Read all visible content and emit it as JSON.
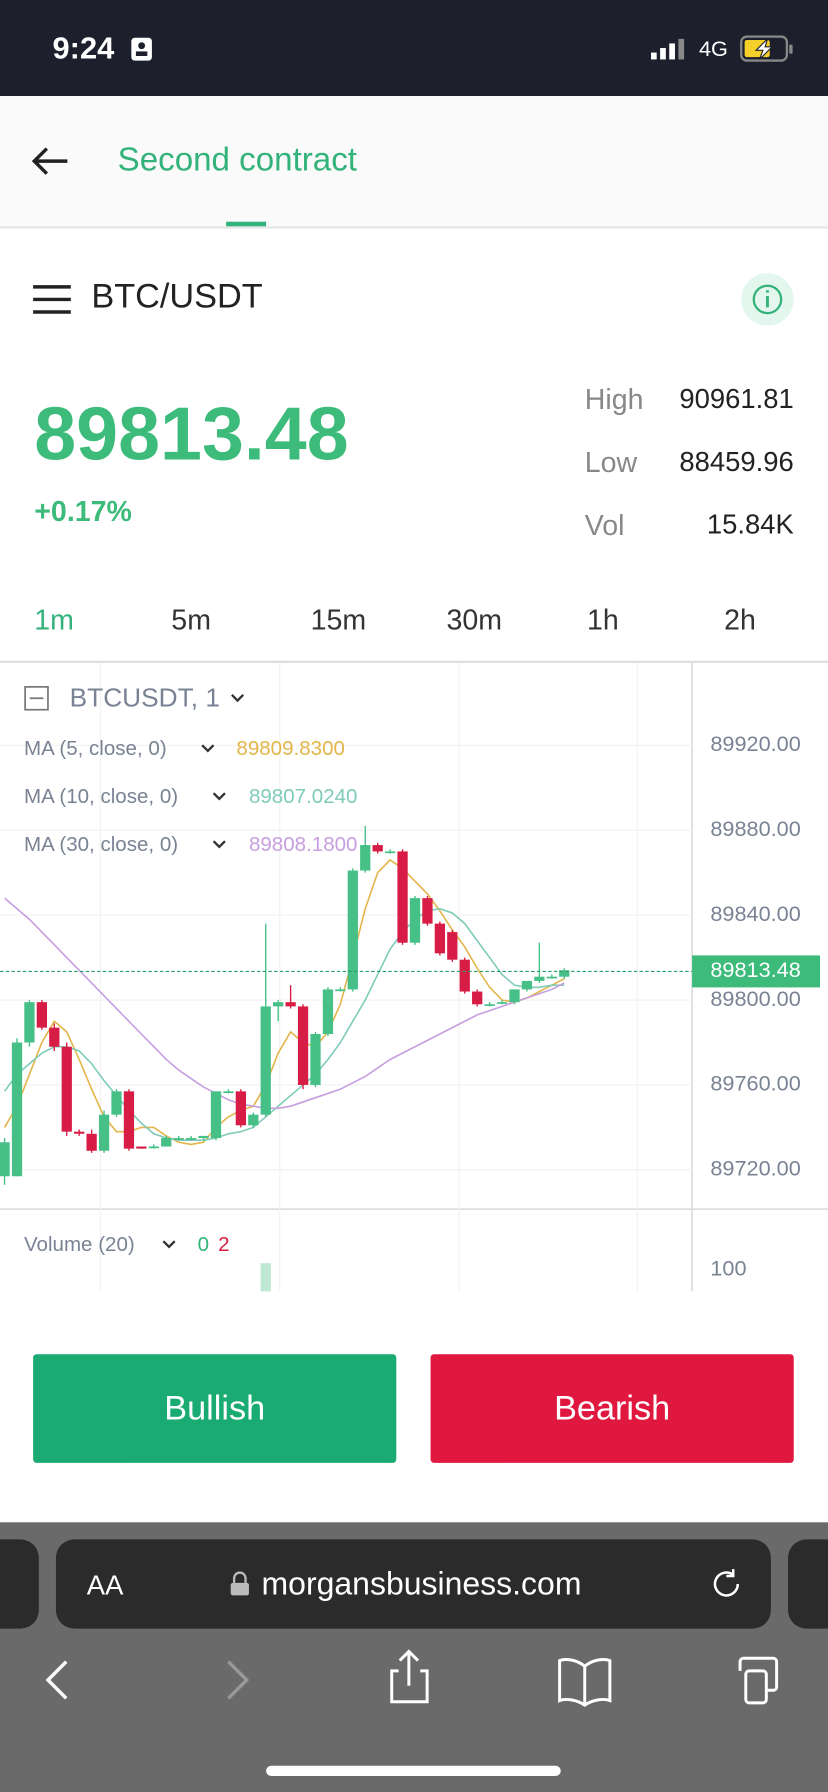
{
  "status_bar": {
    "time": "9:24",
    "network": "4G"
  },
  "header": {
    "title": "Second contract"
  },
  "ticker": {
    "pair": "BTC/USDT",
    "price": "89813.48",
    "change": "+0.17%",
    "stats": [
      {
        "label": "High",
        "value": "90961.81"
      },
      {
        "label": "Low",
        "value": "88459.96"
      },
      {
        "label": "Vol",
        "value": "15.84K"
      }
    ]
  },
  "timeframes": [
    "1m",
    "5m",
    "15m",
    "30m",
    "1h",
    "2h"
  ],
  "chart_data": {
    "type": "candlestick",
    "title": "BTCUSDT, 1",
    "up_color": "#47c088",
    "down_color": "#d71d45",
    "open": [
      89717,
      89717,
      89780,
      89799,
      89787,
      89778,
      89738,
      89737,
      89729,
      89746,
      89757,
      89731,
      89731,
      89731,
      89735,
      89735,
      89735,
      89735,
      89757,
      89757,
      89741,
      89746,
      89797,
      89799,
      89797,
      89760,
      89784,
      89805,
      89805,
      89861,
      89873,
      89870,
      89870,
      89827,
      89848,
      89836,
      89832,
      89819,
      89804,
      89798,
      89799,
      89799,
      89805,
      89809,
      89811,
      89811
    ],
    "high": [
      89735,
      89782,
      89800,
      89800,
      89789,
      89780,
      89739,
      89739,
      89748,
      89758,
      89758,
      89731,
      89732,
      89736,
      89736,
      89736,
      89736,
      89757,
      89758,
      89758,
      89747,
      89836,
      89800,
      89807,
      89798,
      89785,
      89806,
      89806,
      89862,
      89882,
      89874,
      89871,
      89871,
      89849,
      89849,
      89837,
      89833,
      89820,
      89805,
      89799,
      89800,
      89805,
      89809,
      89827,
      89812,
      89815
    ],
    "low": [
      89713,
      89717,
      89778,
      89786,
      89776,
      89736,
      89736,
      89728,
      89728,
      89745,
      89729,
      89730,
      89730,
      89731,
      89734,
      89734,
      89734,
      89734,
      89756,
      89740,
      89740,
      89745,
      89790,
      89796,
      89758,
      89759,
      89783,
      89804,
      89804,
      89860,
      89869,
      89869,
      89826,
      89826,
      89835,
      89821,
      89818,
      89803,
      89797,
      89797,
      89798,
      89798,
      89804,
      89808,
      89810,
      89810
    ],
    "close": [
      89733,
      89780,
      89799,
      89787,
      89778,
      89738,
      89737,
      89729,
      89746,
      89757,
      89730,
      89730,
      89731,
      89735,
      89735,
      89735,
      89736,
      89757,
      89757,
      89741,
      89746,
      89797,
      89799,
      89797,
      89760,
      89784,
      89805,
      89805,
      89861,
      89873,
      89870,
      89870,
      89827,
      89848,
      89836,
      89822,
      89819,
      89804,
      89798,
      89798,
      89799,
      89805,
      89809,
      89811,
      89811,
      89814
    ],
    "ma": [
      {
        "name": "MA (5, close, 0)",
        "value_label": "89809.8300",
        "color": "#e3b54a",
        "values": [
          89740,
          89750,
          89765,
          89780,
          89790,
          89785,
          89772,
          89758,
          89745,
          89738,
          89738,
          89740,
          89740,
          89736,
          89733,
          89732,
          89733,
          89740,
          89745,
          89748,
          89750,
          89760,
          89775,
          89785,
          89780,
          89778,
          89785,
          89798,
          89820,
          89843,
          89860,
          89866,
          89862,
          89856,
          89850,
          89842,
          89833,
          89825,
          89815,
          89806,
          89800,
          89799,
          89801,
          89804,
          89807,
          89810
        ]
      },
      {
        "name": "MA (10, close, 0)",
        "value_label": "89807.0240",
        "color": "#7fcbb9",
        "values": [
          89757,
          89765,
          89770,
          89775,
          89778,
          89778,
          89776,
          89770,
          89762,
          89755,
          89748,
          89742,
          89737,
          89735,
          89734,
          89734,
          89734,
          89735,
          89737,
          89738,
          89740,
          89745,
          89750,
          89755,
          89760,
          89765,
          89772,
          89780,
          89790,
          89800,
          89812,
          89824,
          89832,
          89838,
          89842,
          89843,
          89841,
          89836,
          89828,
          89820,
          89812,
          89807,
          89806,
          89806,
          89807,
          89807
        ]
      },
      {
        "name": "MA (30, close, 0)",
        "value_label": "89808.1800",
        "color": "#c79ee0",
        "values": [
          89848,
          89843,
          89838,
          89832,
          89826,
          89820,
          89814,
          89808,
          89802,
          89796,
          89790,
          89784,
          89778,
          89772,
          89767,
          89763,
          89759,
          89756,
          89753,
          89751,
          89750,
          89749,
          89749,
          89750,
          89752,
          89754,
          89756,
          89758,
          89761,
          89764,
          89768,
          89772,
          89775,
          89778,
          89781,
          89784,
          89787,
          89790,
          89793,
          89795,
          89797,
          89799,
          89801,
          89803,
          89805,
          89808
        ]
      }
    ],
    "ylim": [
      89701.5,
      89959.9
    ],
    "yticks": [
      {
        "value": 89720,
        "label": "89720.00"
      },
      {
        "value": 89760,
        "label": "89760.00"
      },
      {
        "value": 89800,
        "label": "89800.00"
      },
      {
        "value": 89840,
        "label": "89840.00"
      },
      {
        "value": 89880,
        "label": "89880.00"
      },
      {
        "value": 89920,
        "label": "89920.00"
      }
    ],
    "last_price": 89813.48,
    "grid": true,
    "volume": {
      "label": "Volume (20)",
      "legend_values": [
        "0",
        "2"
      ],
      "color": "#bfe8d3",
      "ylim": [
        0,
        368
      ],
      "yticks": [
        100
      ],
      "values": [
        0,
        0,
        0,
        0,
        0,
        0,
        0,
        0,
        0,
        0,
        0,
        0,
        0,
        0,
        0,
        0,
        0,
        0,
        0,
        0,
        0,
        130,
        0,
        0,
        0,
        0,
        0,
        0,
        0,
        0,
        0,
        0,
        0,
        0,
        0,
        0,
        0,
        0,
        0,
        0,
        0,
        0,
        0,
        0,
        0,
        0
      ]
    }
  },
  "buttons": {
    "bullish": "Bullish",
    "bearish": "Bearish"
  },
  "browser": {
    "text_size": "AA",
    "url": "morgansbusiness.com"
  }
}
